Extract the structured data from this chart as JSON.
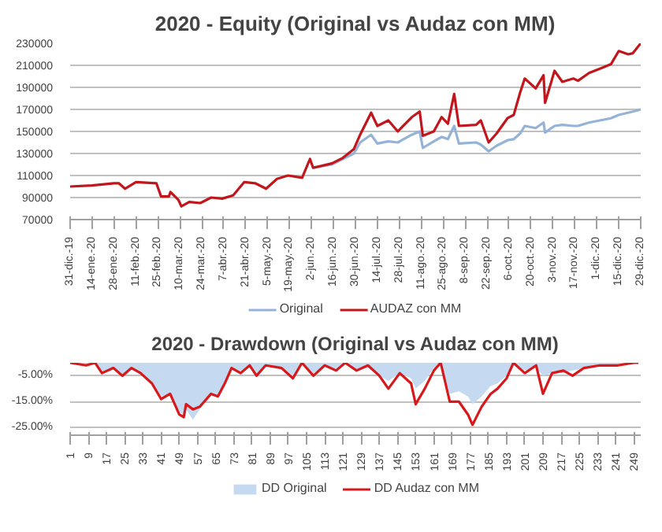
{
  "chart_data": [
    {
      "type": "line",
      "title": "2020 - Equity (Original vs Audaz con MM)",
      "x": [
        "2019-12-31",
        "2020-01-14",
        "2020-01-28",
        "2020-01-31",
        "2020-02-04",
        "2020-02-11",
        "2020-02-24",
        "2020-02-27",
        "2020-03-03",
        "2020-03-04",
        "2020-03-09",
        "2020-03-11",
        "2020-03-16",
        "2020-03-23",
        "2020-03-30",
        "2020-04-06",
        "2020-04-13",
        "2020-04-20",
        "2020-04-27",
        "2020-05-04",
        "2020-05-11",
        "2020-05-18",
        "2020-05-27",
        "2020-06-01",
        "2020-06-03",
        "2020-06-15",
        "2020-06-22",
        "2020-06-29",
        "2020-07-03",
        "2020-07-10",
        "2020-07-14",
        "2020-07-21",
        "2020-07-27",
        "2020-08-05",
        "2020-08-10",
        "2020-08-12",
        "2020-08-19",
        "2020-08-24",
        "2020-08-28",
        "2020-09-01",
        "2020-09-04",
        "2020-09-15",
        "2020-09-18",
        "2020-09-23",
        "2020-09-28",
        "2020-10-05",
        "2020-10-09",
        "2020-10-13",
        "2020-10-16",
        "2020-10-23",
        "2020-10-28",
        "2020-10-29",
        "2020-11-04",
        "2020-11-09",
        "2020-11-16",
        "2020-11-19",
        "2020-11-26",
        "2020-12-03",
        "2020-12-10",
        "2020-12-15",
        "2020-12-21",
        "2020-12-24",
        "2020-12-29"
      ],
      "series": [
        {
          "name": "Original",
          "color": "#95b3d7",
          "values": [
            null,
            null,
            null,
            null,
            null,
            null,
            null,
            null,
            null,
            null,
            null,
            null,
            null,
            null,
            null,
            null,
            null,
            null,
            null,
            null,
            null,
            null,
            null,
            null,
            117000,
            120000,
            125000,
            130000,
            140000,
            147000,
            139000,
            141000,
            140000,
            147000,
            150000,
            135000,
            141000,
            145000,
            143000,
            155000,
            139000,
            140000,
            138000,
            132000,
            137000,
            142000,
            143000,
            148000,
            155000,
            153000,
            158000,
            149000,
            155000,
            156000,
            155000,
            155000,
            158000,
            160000,
            162000,
            165000,
            167000,
            168000,
            170000
          ]
        },
        {
          "name": "AUDAZ con MM",
          "color": "#c0161c",
          "values": [
            100000,
            101000,
            103000,
            103000,
            98000,
            104000,
            103000,
            91000,
            91000,
            95000,
            88000,
            82000,
            86000,
            85000,
            90000,
            89000,
            92000,
            104000,
            103000,
            98000,
            107000,
            110000,
            108000,
            125000,
            117000,
            121000,
            126000,
            134000,
            147000,
            167000,
            155000,
            160000,
            150000,
            163000,
            168000,
            146000,
            150000,
            163000,
            157000,
            184000,
            155000,
            156000,
            160000,
            140000,
            148000,
            162000,
            165000,
            185000,
            198000,
            189000,
            201000,
            176000,
            205000,
            195000,
            198000,
            196000,
            203000,
            207000,
            211000,
            223000,
            220000,
            221000,
            230000
          ]
        }
      ],
      "xlim": [
        "2019-12-31",
        "2020-12-29"
      ],
      "xticks": [
        {
          "value": "2019-12-31",
          "label": "31-dic.-19"
        },
        {
          "value": "2020-01-14",
          "label": "14-ene.-20"
        },
        {
          "value": "2020-01-28",
          "label": "28-ene.-20"
        },
        {
          "value": "2020-02-11",
          "label": "11-feb.-20"
        },
        {
          "value": "2020-02-25",
          "label": "25-feb.-20"
        },
        {
          "value": "2020-03-10",
          "label": "10-mar.-20"
        },
        {
          "value": "2020-03-24",
          "label": "24-mar.-20"
        },
        {
          "value": "2020-04-07",
          "label": "7-abr.-20"
        },
        {
          "value": "2020-04-21",
          "label": "21-abr.-20"
        },
        {
          "value": "2020-05-05",
          "label": "5-may.-20"
        },
        {
          "value": "2020-05-19",
          "label": "19-may.-20"
        },
        {
          "value": "2020-06-02",
          "label": "2-jun.-20"
        },
        {
          "value": "2020-06-16",
          "label": "16-jun.-20"
        },
        {
          "value": "2020-06-30",
          "label": "30-jun.-20"
        },
        {
          "value": "2020-07-14",
          "label": "14-jul.-20"
        },
        {
          "value": "2020-07-28",
          "label": "28-jul.-20"
        },
        {
          "value": "2020-08-11",
          "label": "11-ago.-20"
        },
        {
          "value": "2020-08-25",
          "label": "25-ago.-20"
        },
        {
          "value": "2020-09-08",
          "label": "8-sep.-20"
        },
        {
          "value": "2020-09-22",
          "label": "22-sep.-20"
        },
        {
          "value": "2020-10-06",
          "label": "6-oct.-20"
        },
        {
          "value": "2020-10-20",
          "label": "20-oct.-20"
        },
        {
          "value": "2020-11-03",
          "label": "3-nov.-20"
        },
        {
          "value": "2020-11-17",
          "label": "17-nov.-20"
        },
        {
          "value": "2020-12-01",
          "label": "1-dic.-20"
        },
        {
          "value": "2020-12-15",
          "label": "15-dic.-20"
        },
        {
          "value": "2020-12-29",
          "label": "29-dic.-20"
        }
      ],
      "ylim": [
        70000,
        230000
      ],
      "yticks": [
        70000,
        90000,
        110000,
        130000,
        150000,
        170000,
        190000,
        210000,
        230000
      ],
      "grid": "y",
      "legend": "bottom"
    },
    {
      "type": "line",
      "title": "2020 - Drawdown (Original vs Audaz con MM)",
      "x": [
        1,
        8,
        12,
        15,
        20,
        24,
        28,
        32,
        37,
        41,
        45,
        49,
        51,
        52,
        55,
        58,
        63,
        66,
        69,
        72,
        76,
        80,
        83,
        87,
        94,
        99,
        103,
        108,
        113,
        118,
        122,
        127,
        132,
        137,
        141,
        146,
        151,
        153,
        157,
        161,
        164,
        168,
        172,
        176,
        178,
        182,
        186,
        189,
        193,
        196,
        201,
        206,
        209,
        213,
        218,
        222,
        227,
        234,
        242,
        249,
        251
      ],
      "series": [
        {
          "name": "DD Original",
          "type": "area",
          "color": "#c5d9f1",
          "values": [
            0,
            -1,
            0,
            -4,
            -2,
            -5,
            -2,
            -4,
            -8,
            -13,
            -12,
            -19,
            -20,
            -18,
            -22,
            -18,
            -12,
            -13,
            -8,
            -2,
            -4,
            -1,
            -5,
            -1,
            -2,
            -5,
            0,
            -4,
            -1,
            -3,
            0,
            -3,
            -2,
            -5,
            -7,
            -4,
            -6,
            -10,
            -7,
            -2,
            -1,
            -12,
            -11,
            -13,
            -16,
            -13,
            -9,
            -8,
            -5,
            -1,
            -3,
            -2,
            -5,
            -4,
            -4,
            -3,
            -2,
            -1,
            -1,
            0,
            0
          ]
        },
        {
          "name": "DD Audaz con MM",
          "type": "line",
          "color": "#d7191c",
          "values": [
            0,
            -1,
            0,
            -4,
            -2,
            -5,
            -2,
            -4,
            -8,
            -14,
            -12,
            -20,
            -21,
            -16,
            -18,
            -17,
            -12,
            -13,
            -8,
            -2,
            -4,
            -1,
            -5,
            -1,
            -2,
            -6,
            0,
            -5,
            -1,
            -3,
            0,
            -3,
            -1,
            -5,
            -10,
            -4,
            -8,
            -16,
            -10,
            -3,
            0,
            -15,
            -15,
            -20,
            -24,
            -17,
            -12,
            -10,
            -6,
            0,
            -4,
            -1,
            -12,
            -4,
            -3,
            -5,
            -2,
            -1,
            -1,
            0,
            0
          ]
        }
      ],
      "xlim": [
        1,
        252
      ],
      "xticks": [
        1,
        9,
        17,
        25,
        33,
        41,
        49,
        57,
        65,
        73,
        81,
        89,
        97,
        105,
        113,
        121,
        129,
        137,
        145,
        153,
        161,
        169,
        177,
        185,
        193,
        201,
        209,
        217,
        225,
        233,
        241,
        249
      ],
      "ylim": [
        -28,
        0
      ],
      "yticks": [
        {
          "value": -5,
          "label": "-5.00%"
        },
        {
          "value": -15,
          "label": "-15.00%"
        },
        {
          "value": -25,
          "label": "-25.00%"
        }
      ],
      "grid": "y",
      "legend": "bottom"
    }
  ]
}
